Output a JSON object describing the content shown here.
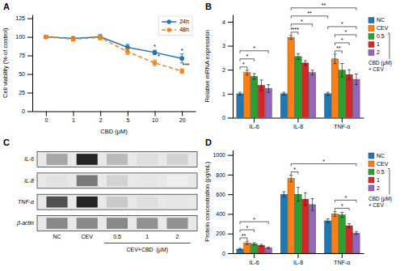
{
  "chart_data": [
    {
      "type": "line",
      "title": "A",
      "categories": [
        "0",
        "1",
        "2",
        "5",
        "10",
        "20"
      ],
      "xlabel": "CBD (μM)",
      "ylabel": "Cell viability (% of control)",
      "ylim": [
        0,
        130
      ],
      "yticks": [
        0,
        25,
        50,
        75,
        100,
        125
      ],
      "grid": false,
      "legend": "upper right",
      "series": [
        {
          "name": "24h",
          "values": [
            100,
            98,
            100,
            86,
            79,
            71
          ],
          "errors": [
            2,
            2,
            3,
            4,
            3,
            6
          ],
          "marker": "circle",
          "line_style": "solid"
        },
        {
          "name": "48h",
          "values": [
            100,
            97,
            99,
            80,
            65,
            54
          ],
          "errors": [
            2,
            2,
            3,
            4,
            4,
            3
          ],
          "marker": "square",
          "line_style": "dashed"
        }
      ],
      "annotations": [
        {
          "text": "*",
          "series": 0,
          "index": 4
        },
        {
          "text": "*",
          "series": 0,
          "index": 5
        },
        {
          "text": "*",
          "series": 1,
          "index": 4
        },
        {
          "text": "***",
          "series": 1,
          "index": 5
        }
      ]
    },
    {
      "type": "bar",
      "title": "B",
      "categories": [
        "IL-6",
        "IL-8",
        "TNF-α"
      ],
      "ylabel": "Relative mRNA expression",
      "ylim": [
        0,
        4.3
      ],
      "yticks": [
        0,
        1,
        2,
        3,
        4
      ],
      "grid": false,
      "legend": "upper left",
      "legend_note": {
        "text": "CBD (μM)\n+ CEV",
        "series": [
          2,
          4
        ]
      },
      "series": [
        {
          "name": "NC",
          "values": [
            1.0,
            1.0,
            1.0
          ],
          "errors": [
            0.06,
            0.06,
            0.06
          ]
        },
        {
          "name": "CEV",
          "values": [
            1.88,
            3.35,
            2.45
          ],
          "errors": [
            0.1,
            0.08,
            0.2
          ]
        },
        {
          "name": "0.5",
          "values": [
            1.72,
            2.55,
            1.98
          ],
          "errors": [
            0.12,
            0.12,
            0.28
          ]
        },
        {
          "name": "1",
          "values": [
            1.35,
            2.28,
            1.8
          ],
          "errors": [
            0.22,
            0.1,
            0.2
          ]
        },
        {
          "name": "2",
          "values": [
            1.22,
            1.88,
            1.6
          ],
          "errors": [
            0.16,
            0.1,
            0.22
          ]
        }
      ],
      "annotations": [
        {
          "text": "*",
          "from": [
            0,
            0
          ],
          "to": [
            0,
            1
          ]
        },
        {
          "text": "*",
          "from": [
            0,
            0
          ],
          "to": [
            0,
            2
          ]
        },
        {
          "text": "*",
          "from": [
            0,
            0
          ],
          "to": [
            0,
            4
          ]
        },
        {
          "text": "****",
          "from": [
            1,
            1
          ],
          "to": [
            1,
            2
          ]
        },
        {
          "text": "*",
          "from": [
            1,
            1
          ],
          "to": [
            1,
            4
          ]
        },
        {
          "text": "**",
          "from": [
            1,
            1
          ],
          "to": [
            2,
            0
          ]
        },
        {
          "text": "**",
          "from": [
            1,
            1
          ],
          "to": [
            2,
            4
          ]
        },
        {
          "text": "**",
          "from": [
            2,
            1
          ],
          "to": [
            2,
            2
          ]
        },
        {
          "text": "*",
          "from": [
            2,
            1
          ],
          "to": [
            2,
            3
          ]
        },
        {
          "text": "*",
          "from": [
            2,
            1
          ],
          "to": [
            2,
            4
          ]
        },
        {
          "text": "*",
          "from": [
            2,
            0
          ],
          "to": [
            2,
            4
          ]
        }
      ]
    },
    {
      "type": "heatmap",
      "title": "C",
      "rows": [
        "IL-6",
        "IL-8",
        "TNF-α",
        "β-actin"
      ],
      "categories": [
        "NC",
        "CEV",
        "0.5",
        "1",
        "2"
      ],
      "values": [
        [
          0.45,
          0.88,
          0.38,
          0.22,
          0.28
        ],
        [
          0.2,
          0.6,
          0.28,
          0.18,
          0.12
        ],
        [
          0.75,
          0.88,
          0.32,
          0.22,
          0.18
        ],
        [
          0.55,
          0.55,
          0.55,
          0.52,
          0.52
        ]
      ],
      "annotations": [
        {
          "text": "CEV+CBD  (μM)",
          "from": 2,
          "to": 4
        }
      ]
    },
    {
      "type": "bar",
      "title": "D",
      "categories": [
        "IL-6",
        "IL-8",
        "TNF-α"
      ],
      "ylabel": "Protein concentration (pg/mL)",
      "ylim": [
        0,
        1050
      ],
      "yticks": [
        0,
        200,
        400,
        600,
        800,
        1000
      ],
      "grid": false,
      "legend": "upper left",
      "legend_note": {
        "text": "CBD (μM)\n+ CEV",
        "series": [
          2,
          4
        ]
      },
      "series": [
        {
          "name": "NC",
          "values": [
            42,
            600,
            330
          ],
          "errors": [
            8,
            25,
            20
          ]
        },
        {
          "name": "CEV",
          "values": [
            105,
            760,
            400
          ],
          "errors": [
            18,
            35,
            25
          ]
        },
        {
          "name": "0.5",
          "values": [
            95,
            600,
            390
          ],
          "errors": [
            12,
            70,
            25
          ]
        },
        {
          "name": "1",
          "values": [
            80,
            550,
            280
          ],
          "errors": [
            10,
            65,
            20
          ]
        },
        {
          "name": "2",
          "values": [
            55,
            495,
            205
          ],
          "errors": [
            8,
            60,
            15
          ]
        }
      ],
      "annotations": [
        {
          "text": "**",
          "from": [
            0,
            0
          ],
          "to": [
            0,
            1
          ]
        },
        {
          "text": "*",
          "from": [
            0,
            0
          ],
          "to": [
            0,
            2
          ]
        },
        {
          "text": "*",
          "from": [
            0,
            0
          ],
          "to": [
            0,
            4
          ]
        },
        {
          "text": "*",
          "from": [
            1,
            1
          ],
          "to": [
            1,
            2
          ]
        },
        {
          "text": "*",
          "from": [
            1,
            1
          ],
          "to": [
            2,
            4
          ]
        },
        {
          "text": "*",
          "from": [
            2,
            1
          ],
          "to": [
            2,
            3
          ]
        },
        {
          "text": "*",
          "from": [
            2,
            1
          ],
          "to": [
            2,
            4
          ]
        }
      ]
    }
  ]
}
